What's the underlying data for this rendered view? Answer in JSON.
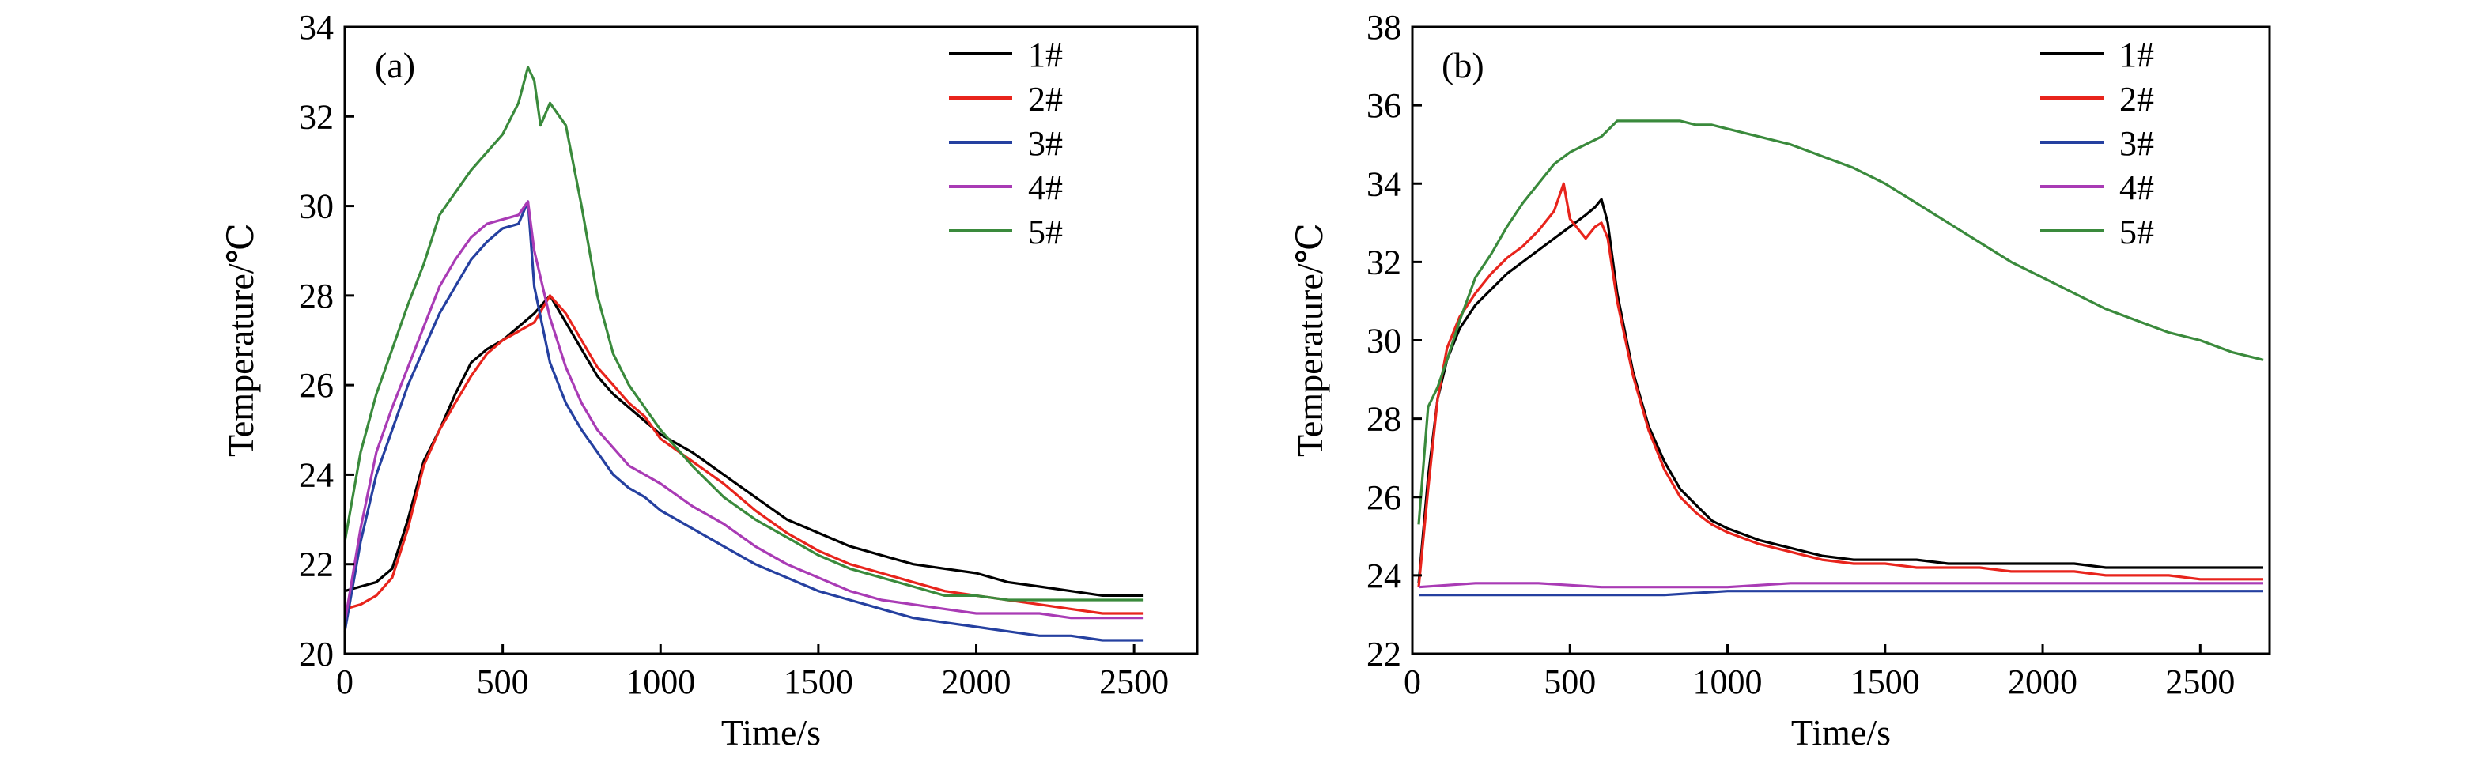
{
  "chart_data": [
    {
      "type": "line",
      "panel_label": "(a)",
      "xlabel": "Time/s",
      "ylabel": "Temperature/℃",
      "xlim": [
        0,
        2700
      ],
      "ylim": [
        20,
        34
      ],
      "x_ticks": [
        0,
        500,
        1000,
        1500,
        2000,
        2500
      ],
      "y_ticks": [
        20,
        22,
        24,
        26,
        28,
        30,
        32,
        34
      ],
      "grid": false,
      "legend_position": "top-right",
      "series": [
        {
          "name": "1#",
          "color": "#000000",
          "x": [
            0,
            50,
            100,
            150,
            200,
            250,
            300,
            350,
            400,
            450,
            500,
            550,
            600,
            650,
            700,
            750,
            800,
            850,
            900,
            950,
            1000,
            1100,
            1200,
            1300,
            1400,
            1500,
            1600,
            1700,
            1800,
            1900,
            2000,
            2100,
            2200,
            2300,
            2400,
            2500,
            2530
          ],
          "y": [
            21.4,
            21.5,
            21.6,
            21.9,
            23.0,
            24.3,
            25.0,
            25.8,
            26.5,
            26.8,
            27.0,
            27.3,
            27.6,
            28.0,
            27.4,
            26.8,
            26.2,
            25.8,
            25.5,
            25.2,
            24.9,
            24.5,
            24.0,
            23.5,
            23.0,
            22.7,
            22.4,
            22.2,
            22.0,
            21.9,
            21.8,
            21.6,
            21.5,
            21.4,
            21.3,
            21.3,
            21.3
          ]
        },
        {
          "name": "2#",
          "color": "#e8241c",
          "x": [
            0,
            50,
            100,
            150,
            200,
            250,
            300,
            350,
            400,
            450,
            500,
            550,
            600,
            650,
            700,
            750,
            800,
            850,
            900,
            950,
            1000,
            1100,
            1200,
            1300,
            1400,
            1500,
            1600,
            1700,
            1800,
            1900,
            2000,
            2100,
            2200,
            2300,
            2400,
            2500,
            2530
          ],
          "y": [
            21.0,
            21.1,
            21.3,
            21.7,
            22.8,
            24.2,
            25.0,
            25.6,
            26.2,
            26.7,
            27.0,
            27.2,
            27.4,
            28.0,
            27.6,
            27.0,
            26.4,
            26.0,
            25.6,
            25.3,
            24.8,
            24.3,
            23.8,
            23.2,
            22.7,
            22.3,
            22.0,
            21.8,
            21.6,
            21.4,
            21.3,
            21.2,
            21.1,
            21.0,
            20.9,
            20.9,
            20.9
          ]
        },
        {
          "name": "3#",
          "color": "#2540a0",
          "x": [
            0,
            50,
            100,
            150,
            200,
            250,
            300,
            350,
            400,
            450,
            500,
            550,
            580,
            600,
            650,
            700,
            750,
            800,
            850,
            900,
            950,
            1000,
            1100,
            1200,
            1300,
            1400,
            1500,
            1600,
            1700,
            1800,
            1900,
            2000,
            2100,
            2200,
            2300,
            2400,
            2500,
            2530
          ],
          "y": [
            20.5,
            22.5,
            24.0,
            25.0,
            26.0,
            26.8,
            27.6,
            28.2,
            28.8,
            29.2,
            29.5,
            29.6,
            30.1,
            28.2,
            26.5,
            25.6,
            25.0,
            24.5,
            24.0,
            23.7,
            23.5,
            23.2,
            22.8,
            22.4,
            22.0,
            21.7,
            21.4,
            21.2,
            21.0,
            20.8,
            20.7,
            20.6,
            20.5,
            20.4,
            20.4,
            20.3,
            20.3,
            20.3
          ]
        },
        {
          "name": "4#",
          "color": "#a93bb5",
          "x": [
            0,
            50,
            100,
            150,
            200,
            250,
            300,
            350,
            400,
            450,
            500,
            550,
            580,
            600,
            650,
            700,
            750,
            800,
            850,
            900,
            950,
            1000,
            1100,
            1200,
            1300,
            1400,
            1500,
            1600,
            1700,
            1800,
            1900,
            2000,
            2100,
            2200,
            2300,
            2400,
            2500,
            2530
          ],
          "y": [
            20.7,
            22.8,
            24.5,
            25.5,
            26.4,
            27.3,
            28.2,
            28.8,
            29.3,
            29.6,
            29.7,
            29.8,
            30.1,
            29.0,
            27.5,
            26.4,
            25.6,
            25.0,
            24.6,
            24.2,
            24.0,
            23.8,
            23.3,
            22.9,
            22.4,
            22.0,
            21.7,
            21.4,
            21.2,
            21.1,
            21.0,
            20.9,
            20.9,
            20.9,
            20.8,
            20.8,
            20.8,
            20.8
          ]
        },
        {
          "name": "5#",
          "color": "#3a8a3c",
          "x": [
            0,
            50,
            100,
            150,
            200,
            250,
            300,
            350,
            400,
            450,
            500,
            550,
            580,
            600,
            620,
            650,
            700,
            750,
            800,
            850,
            900,
            950,
            1000,
            1100,
            1200,
            1300,
            1400,
            1500,
            1600,
            1700,
            1800,
            1900,
            2000,
            2100,
            2200,
            2300,
            2400,
            2500,
            2530
          ],
          "y": [
            22.5,
            24.5,
            25.8,
            26.8,
            27.8,
            28.7,
            29.8,
            30.3,
            30.8,
            31.2,
            31.6,
            32.3,
            33.1,
            32.8,
            31.8,
            32.3,
            31.8,
            30.0,
            28.0,
            26.7,
            26.0,
            25.5,
            25.0,
            24.2,
            23.5,
            23.0,
            22.6,
            22.2,
            21.9,
            21.7,
            21.5,
            21.3,
            21.3,
            21.2,
            21.2,
            21.2,
            21.2,
            21.2,
            21.2
          ]
        }
      ]
    },
    {
      "type": "line",
      "panel_label": "(b)",
      "xlabel": "Time/s",
      "ylabel": "Temperature/℃",
      "xlim": [
        0,
        2720
      ],
      "ylim": [
        22,
        38
      ],
      "x_ticks": [
        0,
        500,
        1000,
        1500,
        2000,
        2500
      ],
      "y_ticks": [
        22,
        24,
        26,
        28,
        30,
        32,
        34,
        36,
        38
      ],
      "grid": false,
      "legend_position": "top-right",
      "series": [
        {
          "name": "1#",
          "color": "#000000",
          "x": [
            20,
            50,
            80,
            110,
            150,
            200,
            250,
            300,
            350,
            400,
            450,
            500,
            550,
            580,
            600,
            620,
            650,
            700,
            750,
            800,
            850,
            900,
            950,
            1000,
            1100,
            1200,
            1300,
            1400,
            1500,
            1600,
            1700,
            1800,
            1900,
            2000,
            2100,
            2200,
            2300,
            2400,
            2500,
            2600,
            2700
          ],
          "y": [
            23.8,
            26.5,
            28.5,
            29.5,
            30.3,
            30.9,
            31.3,
            31.7,
            32.0,
            32.3,
            32.6,
            32.9,
            33.2,
            33.4,
            33.6,
            33.0,
            31.2,
            29.2,
            27.8,
            26.9,
            26.2,
            25.8,
            25.4,
            25.2,
            24.9,
            24.7,
            24.5,
            24.4,
            24.4,
            24.4,
            24.3,
            24.3,
            24.3,
            24.3,
            24.3,
            24.2,
            24.2,
            24.2,
            24.2,
            24.2,
            24.2
          ]
        },
        {
          "name": "2#",
          "color": "#e8241c",
          "x": [
            20,
            50,
            80,
            110,
            150,
            200,
            250,
            300,
            350,
            400,
            450,
            480,
            500,
            550,
            580,
            600,
            620,
            650,
            700,
            750,
            800,
            850,
            900,
            950,
            1000,
            1100,
            1200,
            1300,
            1400,
            1500,
            1600,
            1700,
            1800,
            1900,
            2000,
            2100,
            2200,
            2300,
            2400,
            2500,
            2600,
            2700
          ],
          "y": [
            23.7,
            26.2,
            28.5,
            29.8,
            30.6,
            31.2,
            31.7,
            32.1,
            32.4,
            32.8,
            33.3,
            34.0,
            33.1,
            32.6,
            32.9,
            33.0,
            32.6,
            31.0,
            29.1,
            27.7,
            26.7,
            26.0,
            25.6,
            25.3,
            25.1,
            24.8,
            24.6,
            24.4,
            24.3,
            24.3,
            24.2,
            24.2,
            24.2,
            24.1,
            24.1,
            24.1,
            24.0,
            24.0,
            24.0,
            23.9,
            23.9,
            23.9
          ]
        },
        {
          "name": "3#",
          "color": "#2540a0",
          "x": [
            20,
            200,
            400,
            600,
            800,
            1000,
            1200,
            1400,
            1600,
            1800,
            2000,
            2200,
            2400,
            2600,
            2700
          ],
          "y": [
            23.5,
            23.5,
            23.5,
            23.5,
            23.5,
            23.6,
            23.6,
            23.6,
            23.6,
            23.6,
            23.6,
            23.6,
            23.6,
            23.6,
            23.6
          ]
        },
        {
          "name": "4#",
          "color": "#a93bb5",
          "x": [
            20,
            200,
            400,
            600,
            800,
            1000,
            1200,
            1400,
            1600,
            1800,
            2000,
            2200,
            2400,
            2600,
            2700
          ],
          "y": [
            23.7,
            23.8,
            23.8,
            23.7,
            23.7,
            23.7,
            23.8,
            23.8,
            23.8,
            23.8,
            23.8,
            23.8,
            23.8,
            23.8,
            23.8
          ]
        },
        {
          "name": "5#",
          "color": "#3a8a3c",
          "x": [
            20,
            50,
            80,
            110,
            150,
            200,
            250,
            300,
            350,
            400,
            450,
            500,
            550,
            600,
            650,
            700,
            750,
            800,
            850,
            900,
            950,
            1000,
            1100,
            1200,
            1300,
            1400,
            1500,
            1600,
            1700,
            1800,
            1900,
            2000,
            2100,
            2200,
            2300,
            2400,
            2500,
            2600,
            2700
          ],
          "y": [
            25.3,
            28.3,
            28.8,
            29.5,
            30.5,
            31.6,
            32.2,
            32.9,
            33.5,
            34.0,
            34.5,
            34.8,
            35.0,
            35.2,
            35.6,
            35.6,
            35.6,
            35.6,
            35.6,
            35.5,
            35.5,
            35.4,
            35.2,
            35.0,
            34.7,
            34.4,
            34.0,
            33.5,
            33.0,
            32.5,
            32.0,
            31.6,
            31.2,
            30.8,
            30.5,
            30.2,
            30.0,
            29.7,
            29.5
          ]
        }
      ]
    }
  ]
}
